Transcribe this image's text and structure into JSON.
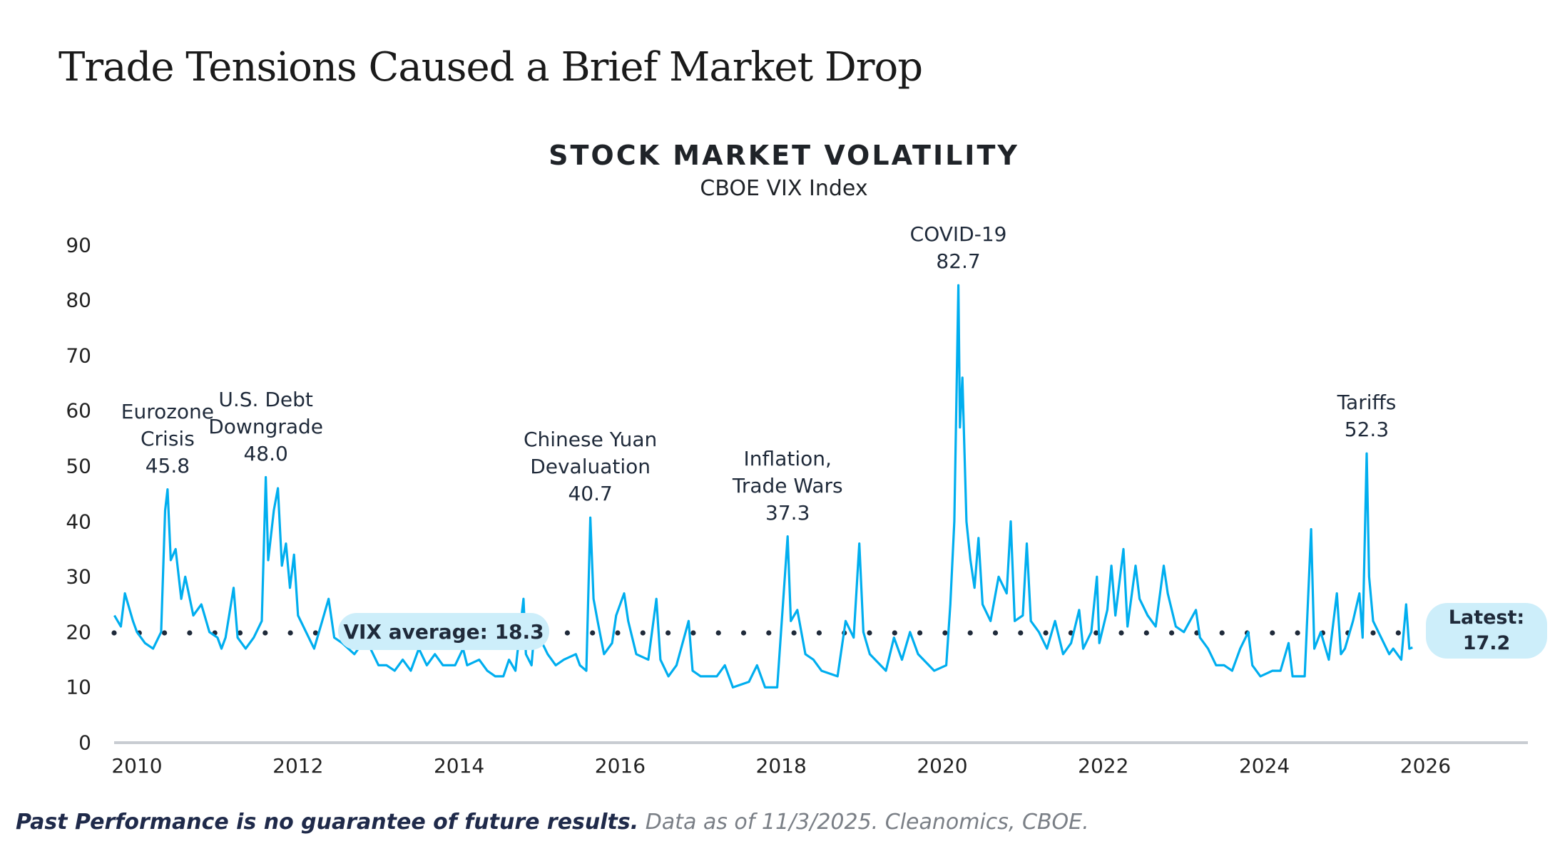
{
  "page_title": "Trade Tensions Caused a Brief Market Drop",
  "footer": {
    "bold": "Past Performance is no guarantee of future results.",
    "note": " Data as of 11/3/2025. Cleanomics, CBOE."
  },
  "colors": {
    "line": "#00aeef",
    "pill": "#cdeefa",
    "average_dots": "#1f2a3a",
    "axis": "#c8ccd2"
  },
  "chart_data": {
    "type": "line",
    "title": "STOCK MARKET VOLATILITY",
    "subtitle": "CBOE VIX Index",
    "xlabel": "",
    "ylabel": "",
    "ylim": [
      0,
      90
    ],
    "xlim": [
      2009.7,
      2027.2
    ],
    "grid": false,
    "y_ticks": [
      "0",
      "10",
      "20",
      "30",
      "40",
      "50",
      "60",
      "70",
      "80",
      "90"
    ],
    "x_ticks": [
      "2010",
      "2012",
      "2014",
      "2016",
      "2018",
      "2020",
      "2022",
      "2024",
      "2026"
    ],
    "average": {
      "label": "VIX average: 18.3",
      "value": 18.3
    },
    "latest": {
      "label": "Latest:",
      "value": "17.2"
    },
    "annotations": [
      {
        "lines": [
          "Eurozone",
          "Crisis",
          "45.8"
        ],
        "x": 2010.38,
        "y": 45.8
      },
      {
        "lines": [
          "U.S. Debt",
          "Downgrade",
          "48.0"
        ],
        "x": 2011.6,
        "y": 48.0
      },
      {
        "lines": [
          "Chinese Yuan",
          "Devaluation",
          "40.7"
        ],
        "x": 2015.63,
        "y": 40.7
      },
      {
        "lines": [
          "Inflation,",
          "Trade Wars",
          "37.3"
        ],
        "x": 2018.08,
        "y": 37.3
      },
      {
        "lines": [
          "COVID-19",
          "82.7"
        ],
        "x": 2020.2,
        "y": 82.7
      },
      {
        "lines": [
          "Tariffs",
          "52.3"
        ],
        "x": 2025.27,
        "y": 52.3
      }
    ],
    "series": [
      {
        "x": [
          2009.72,
          2009.8,
          2009.85,
          2009.95,
          2010.0,
          2010.1,
          2010.2,
          2010.3,
          2010.35,
          2010.38,
          2010.42,
          2010.48,
          2010.55,
          2010.6,
          2010.7,
          2010.8,
          2010.9,
          2011.0,
          2011.05,
          2011.1,
          2011.2,
          2011.25,
          2011.35,
          2011.45,
          2011.55,
          2011.6,
          2011.63,
          2011.7,
          2011.75,
          2011.8,
          2011.85,
          2011.9,
          2011.95,
          2012.0,
          2012.1,
          2012.2,
          2012.3,
          2012.38,
          2012.45,
          2012.55,
          2012.7,
          2012.8,
          2012.9,
          2013.0,
          2013.1,
          2013.2,
          2013.3,
          2013.4,
          2013.5,
          2013.6,
          2013.7,
          2013.8,
          2013.95,
          2014.05,
          2014.1,
          2014.25,
          2014.35,
          2014.45,
          2014.55,
          2014.62,
          2014.7,
          2014.8,
          2014.83,
          2014.9,
          2014.95,
          2015.0,
          2015.1,
          2015.2,
          2015.3,
          2015.45,
          2015.5,
          2015.58,
          2015.63,
          2015.67,
          2015.72,
          2015.8,
          2015.9,
          2015.95,
          2016.05,
          2016.1,
          2016.2,
          2016.35,
          2016.45,
          2016.5,
          2016.6,
          2016.7,
          2016.85,
          2016.9,
          2017.0,
          2017.2,
          2017.3,
          2017.4,
          2017.6,
          2017.7,
          2017.8,
          2017.95,
          2018.08,
          2018.12,
          2018.2,
          2018.3,
          2018.4,
          2018.5,
          2018.7,
          2018.8,
          2018.9,
          2018.97,
          2019.02,
          2019.1,
          2019.3,
          2019.4,
          2019.5,
          2019.6,
          2019.7,
          2019.9,
          2020.05,
          2020.1,
          2020.15,
          2020.2,
          2020.22,
          2020.25,
          2020.3,
          2020.35,
          2020.4,
          2020.45,
          2020.5,
          2020.6,
          2020.7,
          2020.8,
          2020.85,
          2020.9,
          2021.0,
          2021.05,
          2021.1,
          2021.2,
          2021.3,
          2021.4,
          2021.5,
          2021.6,
          2021.7,
          2021.75,
          2021.85,
          2021.92,
          2021.95,
          2022.05,
          2022.1,
          2022.15,
          2022.25,
          2022.3,
          2022.4,
          2022.45,
          2022.55,
          2022.65,
          2022.75,
          2022.8,
          2022.9,
          2023.0,
          2023.15,
          2023.2,
          2023.3,
          2023.4,
          2023.5,
          2023.6,
          2023.7,
          2023.8,
          2023.85,
          2023.95,
          2024.1,
          2024.2,
          2024.3,
          2024.35,
          2024.5,
          2024.58,
          2024.62,
          2024.7,
          2024.8,
          2024.9,
          2024.95,
          2025.0,
          2025.1,
          2025.18,
          2025.22,
          2025.27,
          2025.3,
          2025.35,
          2025.45,
          2025.55,
          2025.6,
          2025.7,
          2025.76,
          2025.8,
          2025.84
        ],
        "values": [
          23,
          21,
          27,
          22,
          20,
          18,
          17,
          20,
          42,
          45.8,
          33,
          35,
          26,
          30,
          23,
          25,
          20,
          19,
          17,
          19,
          28,
          19,
          17,
          19,
          22,
          48.0,
          33,
          42,
          46,
          32,
          36,
          28,
          34,
          23,
          20,
          17,
          22,
          26,
          19,
          18,
          16,
          18,
          17,
          14,
          14,
          13,
          15,
          13,
          17,
          14,
          16,
          14,
          14,
          17,
          14,
          15,
          13,
          12,
          12,
          15,
          13,
          26,
          16,
          14,
          23,
          19,
          16,
          14,
          15,
          16,
          14,
          13,
          40.7,
          26,
          22,
          16,
          18,
          23,
          27,
          22,
          16,
          15,
          26,
          15,
          12,
          14,
          22,
          13,
          12,
          12,
          14,
          10,
          11,
          14,
          10,
          10,
          37.3,
          22,
          24,
          16,
          15,
          13,
          12,
          22,
          19,
          36,
          20,
          16,
          13,
          19,
          15,
          20,
          16,
          13,
          14,
          25,
          40,
          82.7,
          57,
          66,
          40,
          33,
          28,
          37,
          25,
          22,
          30,
          27,
          40,
          22,
          23,
          36,
          22,
          20,
          17,
          22,
          16,
          18,
          24,
          17,
          20,
          30,
          18,
          24,
          32,
          23,
          35,
          21,
          32,
          26,
          23,
          21,
          32,
          27,
          21,
          20,
          24,
          19,
          17,
          14,
          14,
          13,
          17,
          20,
          14,
          12,
          13,
          13,
          18,
          12,
          12,
          38.6,
          17,
          20,
          15,
          27,
          16,
          17,
          22,
          27,
          19,
          52.3,
          30,
          22,
          19,
          16,
          17,
          15,
          25,
          17,
          17.2
        ]
      }
    ]
  }
}
